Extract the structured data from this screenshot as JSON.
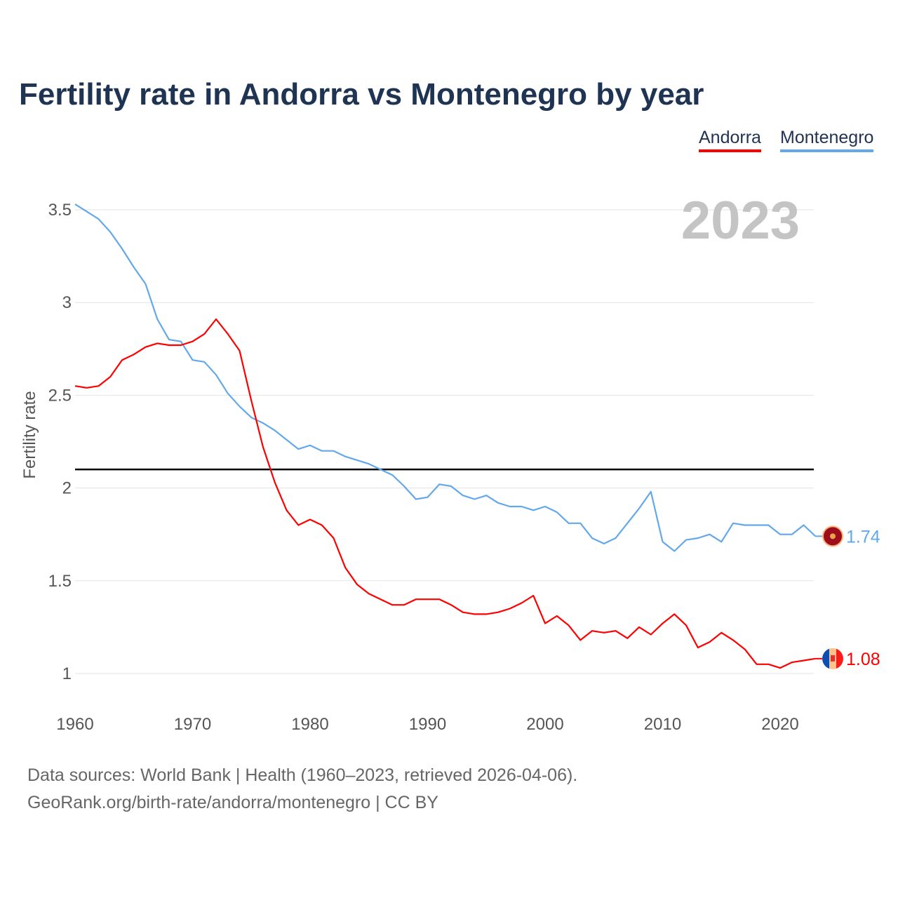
{
  "title": "Fertility rate in Andorra vs Montenegro by year",
  "source_line1": "Data sources: World Bank | Health (1960–2023, retrieved 2026-04-06).",
  "source_line2": "GeoRank.org/birth-rate/andorra/montenegro | CC BY",
  "year_watermark": "2023",
  "chart_data": {
    "type": "line",
    "title": "Fertility rate in Andorra vs Montenegro by year",
    "xlabel": "",
    "ylabel": "Fertility rate",
    "xlim": [
      1960,
      2023
    ],
    "ylim": [
      0.8,
      3.6
    ],
    "xticks": [
      1960,
      1970,
      1980,
      1990,
      2000,
      2010,
      2020
    ],
    "yticks": [
      1,
      1.5,
      2,
      2.5,
      3,
      3.5
    ],
    "ytick_labels": [
      "1",
      "1.5",
      "2",
      "2.5",
      "3",
      "3.5"
    ],
    "reference_line": 2.1,
    "legend_position": "top-right",
    "x_start": 1960,
    "series": [
      {
        "name": "Andorra",
        "color": "#ff0000",
        "end_label": "1.08",
        "flag": "andorra-flag",
        "values": [
          2.55,
          2.54,
          2.55,
          2.6,
          2.69,
          2.72,
          2.76,
          2.78,
          2.77,
          2.77,
          2.79,
          2.83,
          2.91,
          2.83,
          2.74,
          2.47,
          2.22,
          2.03,
          1.88,
          1.8,
          1.83,
          1.8,
          1.73,
          1.57,
          1.48,
          1.43,
          1.4,
          1.37,
          1.37,
          1.4,
          1.4,
          1.4,
          1.37,
          1.33,
          1.32,
          1.32,
          1.33,
          1.35,
          1.38,
          1.42,
          1.27,
          1.31,
          1.26,
          1.18,
          1.23,
          1.22,
          1.23,
          1.19,
          1.25,
          1.21,
          1.27,
          1.32,
          1.26,
          1.14,
          1.17,
          1.22,
          1.18,
          1.13,
          1.05,
          1.05,
          1.03,
          1.06,
          1.07,
          1.08
        ]
      },
      {
        "name": "Montenegro",
        "color": "#62a8ea",
        "end_label": "1.74",
        "flag": "montenegro-flag",
        "values": [
          3.53,
          3.49,
          3.45,
          3.38,
          3.29,
          3.19,
          3.1,
          2.91,
          2.8,
          2.79,
          2.69,
          2.68,
          2.61,
          2.51,
          2.44,
          2.38,
          2.35,
          2.31,
          2.26,
          2.21,
          2.23,
          2.2,
          2.2,
          2.17,
          2.15,
          2.13,
          2.1,
          2.07,
          2.01,
          1.94,
          1.95,
          2.02,
          2.01,
          1.96,
          1.94,
          1.96,
          1.92,
          1.9,
          1.9,
          1.88,
          1.9,
          1.87,
          1.81,
          1.81,
          1.73,
          1.7,
          1.73,
          1.81,
          1.89,
          1.98,
          1.71,
          1.66,
          1.72,
          1.73,
          1.75,
          1.71,
          1.81,
          1.8,
          1.8,
          1.8,
          1.75,
          1.75,
          1.8,
          1.74
        ]
      }
    ]
  }
}
